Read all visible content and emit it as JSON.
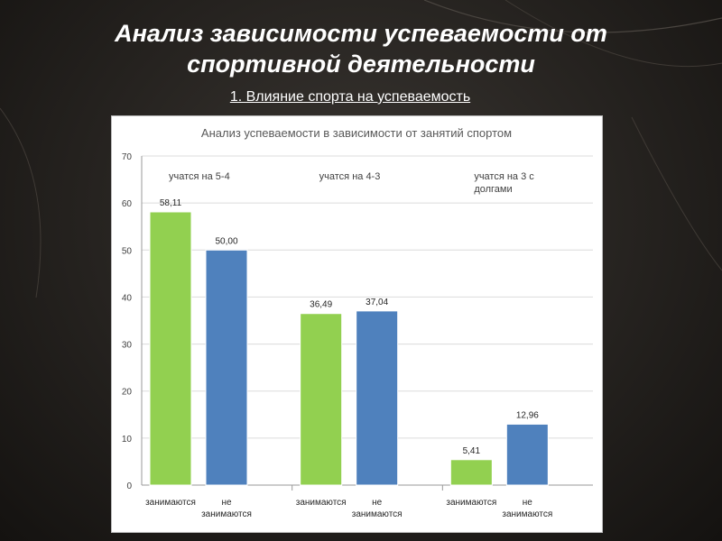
{
  "slide": {
    "title_line1": "Анализ зависимости успеваемости от",
    "title_line2": "спортивной деятельности",
    "subtitle": "1. Влияние спорта на успеваемость"
  },
  "chart_data": {
    "type": "bar",
    "title": "Анализ успеваемости в зависимости от занятий спортом",
    "ylim": [
      0,
      70
    ],
    "y_ticks": [
      0,
      10,
      20,
      30,
      40,
      50,
      60,
      70
    ],
    "grid": true,
    "groups": [
      {
        "label": "учатся на 5-4",
        "bars": [
          {
            "category": "занимаются",
            "value": 58.11,
            "label": "58,11"
          },
          {
            "category": "не занимаются",
            "value": 50.0,
            "label": "50,00"
          }
        ]
      },
      {
        "label": "учатся на 4-3",
        "bars": [
          {
            "category": "занимаются",
            "value": 36.49,
            "label": "36,49"
          },
          {
            "category": "не занимаются",
            "value": 37.04,
            "label": "37,04"
          }
        ]
      },
      {
        "label": "учатся на 3 с долгами",
        "bars": [
          {
            "category": "занимаются",
            "value": 5.41,
            "label": "5,41"
          },
          {
            "category": "не занимаются",
            "value": 12.96,
            "label": "12,96"
          }
        ]
      }
    ],
    "colors": {
      "занимаются": "#92d050",
      "не занимаются": "#4f81bd"
    }
  }
}
